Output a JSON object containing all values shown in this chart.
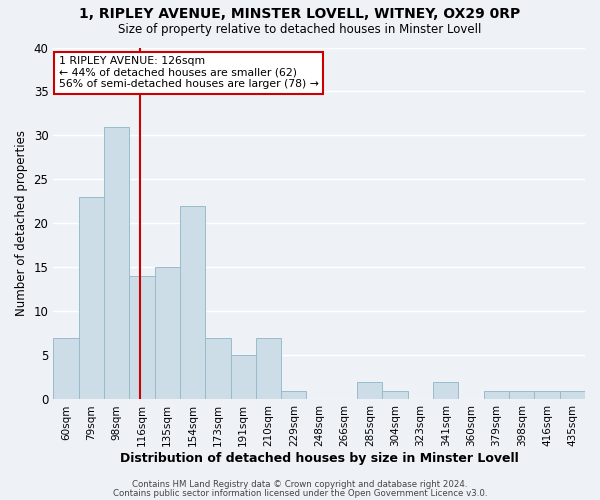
{
  "title": "1, RIPLEY AVENUE, MINSTER LOVELL, WITNEY, OX29 0RP",
  "subtitle": "Size of property relative to detached houses in Minster Lovell",
  "xlabel": "Distribution of detached houses by size in Minster Lovell",
  "ylabel": "Number of detached properties",
  "bar_color": "#ccdde8",
  "bar_edge_color": "#99bbcc",
  "background_color": "#eef2f7",
  "grid_color": "#ffffff",
  "vline_color": "#cc0000",
  "categories": [
    "60sqm",
    "79sqm",
    "98sqm",
    "116sqm",
    "135sqm",
    "154sqm",
    "173sqm",
    "191sqm",
    "210sqm",
    "229sqm",
    "248sqm",
    "266sqm",
    "285sqm",
    "304sqm",
    "323sqm",
    "341sqm",
    "360sqm",
    "379sqm",
    "398sqm",
    "416sqm",
    "435sqm"
  ],
  "values": [
    7,
    23,
    31,
    14,
    15,
    22,
    7,
    5,
    7,
    1,
    0,
    0,
    2,
    1,
    0,
    2,
    0,
    1,
    1,
    1,
    1
  ],
  "vline_pos": 3.42,
  "ylim": [
    0,
    40
  ],
  "yticks": [
    0,
    5,
    10,
    15,
    20,
    25,
    30,
    35,
    40
  ],
  "annotation_line1": "1 RIPLEY AVENUE: 126sqm",
  "annotation_line2": "← 44% of detached houses are smaller (62)",
  "annotation_line3": "56% of semi-detached houses are larger (78) →",
  "footer1": "Contains HM Land Registry data © Crown copyright and database right 2024.",
  "footer2": "Contains public sector information licensed under the Open Government Licence v3.0."
}
